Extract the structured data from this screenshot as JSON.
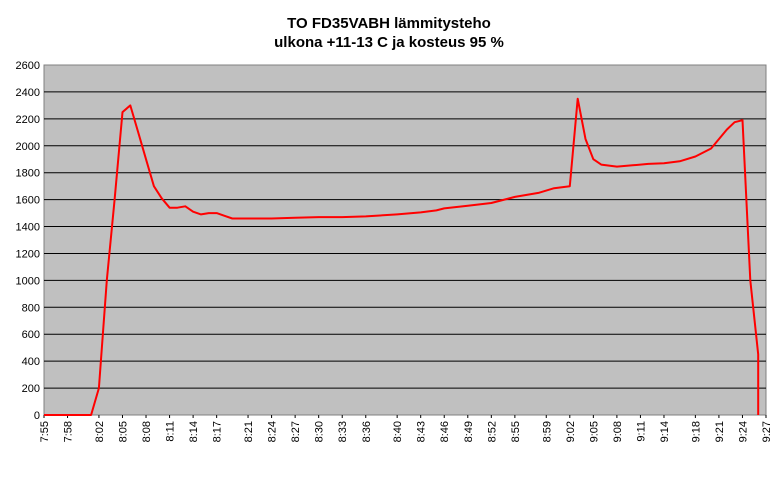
{
  "chart_data": {
    "type": "line",
    "title": "TO FD35VABH lämmitysteho",
    "subtitle": "ulkona +11-13 C ja kosteus 95 %",
    "xlabel": "",
    "ylabel": "",
    "ylim": [
      0,
      2600
    ],
    "yticks": [
      "0",
      "200",
      "400",
      "600",
      "800",
      "1000",
      "1200",
      "1400",
      "1600",
      "1800",
      "2000",
      "2200",
      "2400",
      "2600"
    ],
    "xticks": [
      "7:55",
      "7:58",
      "8:02",
      "8:05",
      "8:08",
      "8:11",
      "8:14",
      "8:17",
      "8:21",
      "8:24",
      "8:27",
      "8:30",
      "8:33",
      "8:36",
      "8:40",
      "8:43",
      "8:46",
      "8:49",
      "8:52",
      "8:55",
      "8:59",
      "9:02",
      "9:05",
      "9:08",
      "9:11",
      "9:14",
      "9:18",
      "9:21",
      "9:24",
      "9:27"
    ],
    "grid": true,
    "legend": "none",
    "colors": {
      "line": "#ff0000",
      "plot_bg": "#c0c0c0",
      "grid": "#000000"
    },
    "series": [
      {
        "x": [
          "7:55",
          "8:01",
          "8:02",
          "8:03",
          "8:04",
          "8:05",
          "8:06",
          "8:07",
          "8:08",
          "8:09",
          "8:10",
          "8:11",
          "8:12",
          "8:13",
          "8:14",
          "8:15",
          "8:16",
          "8:17",
          "8:18",
          "8:19",
          "8:20",
          "8:21",
          "8:24",
          "8:27",
          "8:30",
          "8:33",
          "8:36",
          "8:40",
          "8:43",
          "8:45",
          "8:46",
          "8:49",
          "8:52",
          "8:55",
          "8:58",
          "9:00",
          "9:02",
          "9:03",
          "9:04",
          "9:05",
          "9:06",
          "9:08",
          "9:10",
          "9:12",
          "9:14",
          "9:16",
          "9:18",
          "9:20",
          "9:22",
          "9:23",
          "9:24",
          "9:25",
          "9:26",
          "9:26"
        ],
        "y": [
          0,
          0,
          200,
          1000,
          1600,
          2250,
          2300,
          2100,
          1900,
          1700,
          1610,
          1540,
          1540,
          1550,
          1510,
          1490,
          1500,
          1500,
          1480,
          1460,
          1460,
          1460,
          1460,
          1465,
          1470,
          1470,
          1475,
          1490,
          1505,
          1520,
          1535,
          1555,
          1575,
          1620,
          1650,
          1685,
          1700,
          2350,
          2050,
          1900,
          1860,
          1845,
          1855,
          1865,
          1870,
          1885,
          1920,
          1980,
          2120,
          2175,
          2190,
          1000,
          450,
          0
        ]
      }
    ]
  }
}
